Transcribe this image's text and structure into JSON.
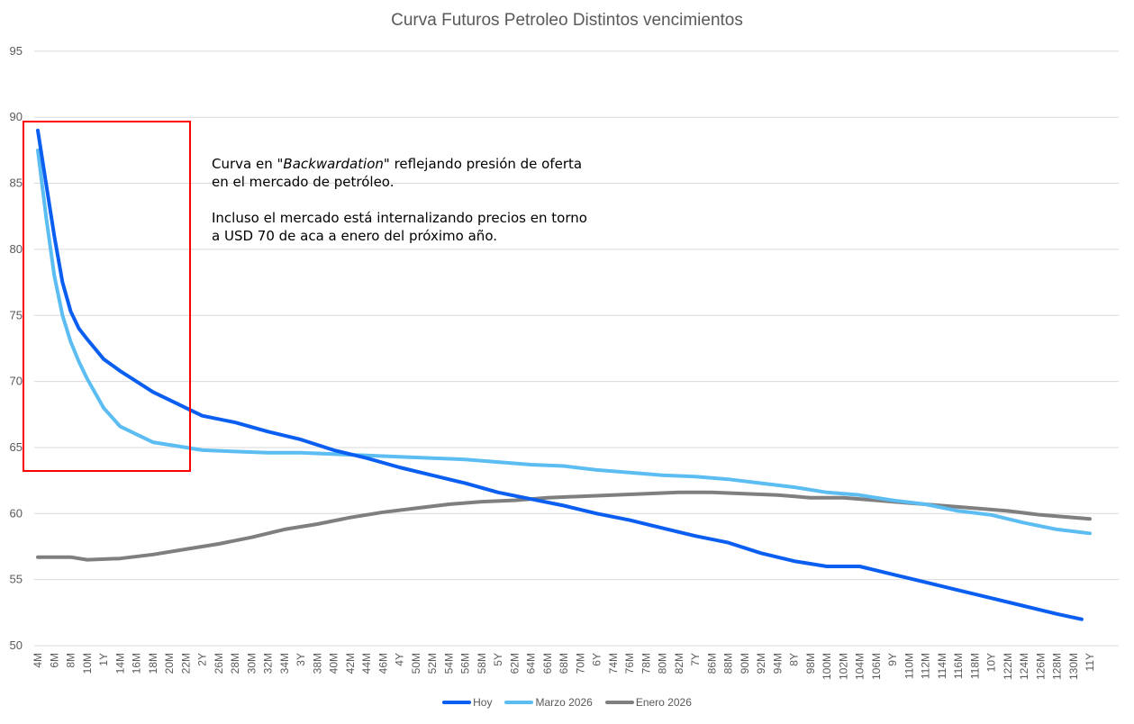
{
  "chart_data": {
    "type": "line",
    "title": "Curva Futuros Petroleo Distintos vencimientos",
    "xlabel": "",
    "ylabel": "",
    "ylim": [
      50,
      95
    ],
    "yticks": [
      50,
      55,
      60,
      65,
      70,
      75,
      80,
      85,
      90,
      95
    ],
    "grid": true,
    "legend_position": "bottom",
    "x_tick_labels": [
      "4M",
      "6M",
      "8M",
      "10M",
      "1Y",
      "14M",
      "16M",
      "18M",
      "20M",
      "22M",
      "2Y",
      "26M",
      "28M",
      "30M",
      "32M",
      "34M",
      "3Y",
      "38M",
      "40M",
      "42M",
      "44M",
      "46M",
      "4Y",
      "50M",
      "52M",
      "54M",
      "56M",
      "58M",
      "5Y",
      "62M",
      "64M",
      "66M",
      "68M",
      "70M",
      "6Y",
      "74M",
      "76M",
      "78M",
      "80M",
      "82M",
      "7Y",
      "86M",
      "88M",
      "90M",
      "92M",
      "94M",
      "8Y",
      "98M",
      "100M",
      "102M",
      "104M",
      "106M",
      "9Y",
      "110M",
      "112M",
      "114M",
      "116M",
      "118M",
      "10Y",
      "122M",
      "124M",
      "126M",
      "128M",
      "130M",
      "11Y"
    ],
    "x_months_range": [
      4,
      132
    ],
    "series": [
      {
        "name": "Hoy",
        "color": "#0A5EF0",
        "months": [
          4,
          5,
          6,
          7,
          8,
          9,
          10,
          12,
          14,
          16,
          18,
          20,
          22,
          24,
          28,
          32,
          36,
          40,
          44,
          48,
          52,
          56,
          60,
          64,
          68,
          72,
          76,
          80,
          84,
          88,
          92,
          96,
          100,
          104,
          108,
          112,
          116,
          120,
          124,
          128,
          131
        ],
        "values": [
          89.0,
          85.0,
          81.0,
          77.5,
          75.3,
          74.0,
          73.2,
          71.7,
          70.8,
          70.0,
          69.2,
          68.6,
          68.0,
          67.4,
          66.9,
          66.2,
          65.6,
          64.8,
          64.2,
          63.5,
          62.9,
          62.3,
          61.6,
          61.1,
          60.6,
          60.0,
          59.5,
          58.9,
          58.3,
          57.8,
          57.0,
          56.4,
          56.0,
          56.0,
          55.4,
          54.8,
          54.2,
          53.6,
          53.0,
          52.4,
          52.0
        ]
      },
      {
        "name": "Marzo 2026",
        "color": "#5BBDF2",
        "months": [
          4,
          5,
          6,
          7,
          8,
          9,
          10,
          12,
          14,
          16,
          18,
          20,
          22,
          24,
          28,
          32,
          36,
          40,
          44,
          48,
          52,
          56,
          60,
          64,
          68,
          72,
          76,
          80,
          84,
          88,
          92,
          96,
          100,
          104,
          108,
          112,
          116,
          120,
          124,
          128,
          132
        ],
        "values": [
          87.5,
          82.5,
          78.0,
          75.0,
          73.0,
          71.5,
          70.2,
          68.0,
          66.6,
          66.0,
          65.4,
          65.2,
          65.0,
          64.8,
          64.7,
          64.6,
          64.6,
          64.5,
          64.4,
          64.3,
          64.2,
          64.1,
          63.9,
          63.7,
          63.6,
          63.3,
          63.1,
          62.9,
          62.8,
          62.6,
          62.3,
          62.0,
          61.6,
          61.4,
          61.0,
          60.7,
          60.2,
          59.9,
          59.3,
          58.8,
          58.5
        ]
      },
      {
        "name": "Enero 2026",
        "color": "#7F7F7F",
        "months": [
          4,
          8,
          10,
          14,
          18,
          22,
          26,
          30,
          34,
          38,
          42,
          46,
          50,
          54,
          58,
          62,
          66,
          70,
          74,
          78,
          82,
          86,
          90,
          94,
          98,
          102,
          106,
          110,
          114,
          118,
          122,
          126,
          130,
          132
        ],
        "values": [
          56.7,
          56.7,
          56.5,
          56.6,
          56.9,
          57.3,
          57.7,
          58.2,
          58.8,
          59.2,
          59.7,
          60.1,
          60.4,
          60.7,
          60.9,
          61.0,
          61.2,
          61.3,
          61.4,
          61.5,
          61.6,
          61.6,
          61.5,
          61.4,
          61.2,
          61.2,
          61.0,
          60.8,
          60.6,
          60.4,
          60.2,
          59.9,
          59.7,
          59.6
        ]
      }
    ],
    "annotation": {
      "box_color": "#FF0000",
      "line1": "Curva en ",
      "line1_italic": "\"Backwardation\"",
      "line1_rest": "  reflejando presión de oferta",
      "line2": "en el mercado de petróleo.",
      "line3": "Incluso el mercado está internalizando precios en torno",
      "line4": "a USD 70 de aca a enero del próximo año."
    }
  },
  "legend": {
    "items": [
      {
        "label": "Hoy",
        "color": "#0A5EF0"
      },
      {
        "label": "Marzo 2026",
        "color": "#5BBDF2"
      },
      {
        "label": "Enero 2026",
        "color": "#7F7F7F"
      }
    ]
  }
}
